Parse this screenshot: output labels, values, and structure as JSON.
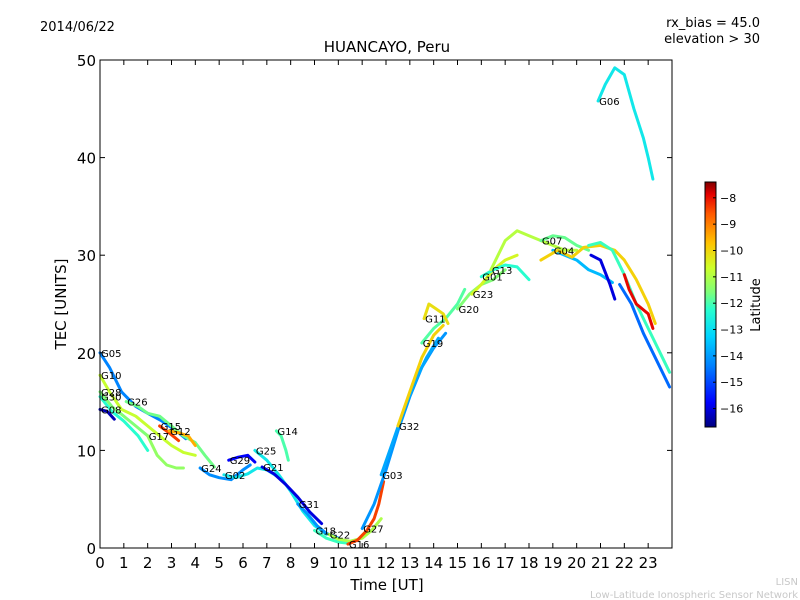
{
  "header": {
    "date": "2014/06/22",
    "info_line1": "rx_bias = 45.0",
    "info_line2": "elevation > 30"
  },
  "footer": {
    "line1": "LISN",
    "line2": "Low-Latitude Ionospheric Sensor Network"
  },
  "chart_data": {
    "type": "line",
    "title": "HUANCAYO, Peru",
    "xlabel": "Time [UT]",
    "ylabel": "TEC [UNITS]",
    "xlim": [
      0,
      24
    ],
    "ylim": [
      0,
      50
    ],
    "x_ticks": [
      0,
      1,
      2,
      3,
      4,
      5,
      6,
      7,
      8,
      9,
      10,
      11,
      12,
      13,
      14,
      15,
      16,
      17,
      18,
      19,
      20,
      21,
      22,
      23
    ],
    "y_ticks": [
      0,
      10,
      20,
      30,
      40,
      50
    ],
    "grid": false,
    "colorbar": {
      "label": "Latitude",
      "range": [
        -16.7,
        -7.4
      ],
      "ticks": [
        -8,
        -9,
        -10,
        -11,
        -12,
        -13,
        -14,
        -15,
        -16
      ],
      "colors": [
        "#00007f",
        "#0000ff",
        "#0080ff",
        "#00d4ff",
        "#29ffce",
        "#7dff7a",
        "#ceff29",
        "#ffc400",
        "#ff5900",
        "#e40000",
        "#7f0000"
      ]
    },
    "series": [
      {
        "name": "G05",
        "lat": -14.8,
        "points": [
          [
            0,
            20
          ],
          [
            0.4,
            18.5
          ],
          [
            0.9,
            16
          ],
          [
            1.5,
            14.5
          ],
          [
            2.0,
            13.8
          ],
          [
            2.6,
            13.0
          ],
          [
            3.2,
            12.0
          ],
          [
            3.6,
            11.2
          ]
        ]
      },
      {
        "name": "G10",
        "lat": -11.2,
        "points": [
          [
            0,
            17.7
          ],
          [
            0.4,
            16
          ],
          [
            0.9,
            14.2
          ],
          [
            1.5,
            13.5
          ],
          [
            2.0,
            12.5
          ],
          [
            2.5,
            11.5
          ],
          [
            3.0,
            10.5
          ],
          [
            3.5,
            9.8
          ],
          [
            4.0,
            9.5
          ]
        ]
      },
      {
        "name": "G28",
        "lat": -12.0,
        "points": [
          [
            0,
            16
          ],
          [
            0.5,
            14.5
          ],
          [
            1.0,
            13.5
          ],
          [
            1.5,
            12.5
          ],
          [
            2.0,
            11.5
          ]
        ]
      },
      {
        "name": "G30",
        "lat": -13.0,
        "points": [
          [
            0,
            15.5
          ],
          [
            0.5,
            14
          ],
          [
            1.0,
            13
          ],
          [
            1.6,
            11.5
          ],
          [
            2.0,
            10
          ]
        ]
      },
      {
        "name": "G08",
        "lat": -16.3,
        "points": [
          [
            0,
            14.2
          ],
          [
            0.3,
            14
          ],
          [
            0.6,
            13.2
          ]
        ]
      },
      {
        "name": "G26",
        "lat": -12.2,
        "points": [
          [
            1.1,
            15
          ],
          [
            1.6,
            14.5
          ],
          [
            2.0,
            13.8
          ],
          [
            2.5,
            13.5
          ],
          [
            3.0,
            12.5
          ],
          [
            3.5,
            11.5
          ],
          [
            4.0,
            10.8
          ],
          [
            4.4,
            9.5
          ],
          [
            4.8,
            8.3
          ]
        ]
      },
      {
        "name": "G17",
        "lat": -11.8,
        "points": [
          [
            2.0,
            11.5
          ],
          [
            2.4,
            9.5
          ],
          [
            2.8,
            8.5
          ],
          [
            3.2,
            8.2
          ],
          [
            3.5,
            8.2
          ]
        ]
      },
      {
        "name": "G15",
        "lat": -9.0,
        "points": [
          [
            2.5,
            12.5
          ],
          [
            2.9,
            11.8
          ],
          [
            3.3,
            11.0
          ]
        ]
      },
      {
        "name": "G12",
        "lat": -10.0,
        "points": [
          [
            2.9,
            12.0
          ],
          [
            3.3,
            11.8
          ],
          [
            3.7,
            11.5
          ],
          [
            4.0,
            10.5
          ]
        ]
      },
      {
        "name": "G24",
        "lat": -14.7,
        "points": [
          [
            4.2,
            8.2
          ],
          [
            4.6,
            7.5
          ],
          [
            5.0,
            7.2
          ],
          [
            5.5,
            7.0
          ],
          [
            6.0,
            8.0
          ],
          [
            6.3,
            8.5
          ]
        ]
      },
      {
        "name": "G29",
        "lat": -15.8,
        "points": [
          [
            5.4,
            9.0
          ],
          [
            5.8,
            9.3
          ],
          [
            6.2,
            9.5
          ],
          [
            6.5,
            8.8
          ]
        ]
      },
      {
        "name": "G02",
        "lat": -13.5,
        "points": [
          [
            5.2,
            7.5
          ],
          [
            5.7,
            7.2
          ],
          [
            6.2,
            7.6
          ],
          [
            6.6,
            8.2
          ],
          [
            7.0,
            8.0
          ],
          [
            7.4,
            7.4
          ]
        ]
      },
      {
        "name": "G14",
        "lat": -12.6,
        "points": [
          [
            7.4,
            12.0
          ],
          [
            7.6,
            11.5
          ],
          [
            7.8,
            10.0
          ],
          [
            7.9,
            9.0
          ]
        ]
      },
      {
        "name": "G25",
        "lat": -13.5,
        "points": [
          [
            6.5,
            10.0
          ],
          [
            7.0,
            9.0
          ],
          [
            7.5,
            7.5
          ],
          [
            8.0,
            5.8
          ],
          [
            8.5,
            3.8
          ],
          [
            9.0,
            2.3
          ],
          [
            9.5,
            1.4
          ]
        ]
      },
      {
        "name": "G21",
        "lat": -16.0,
        "points": [
          [
            6.8,
            8.3
          ],
          [
            7.3,
            7.6
          ],
          [
            7.8,
            6.5
          ],
          [
            8.3,
            5.2
          ],
          [
            8.8,
            3.7
          ],
          [
            9.3,
            2.5
          ]
        ]
      },
      {
        "name": "G31",
        "lat": -14.6,
        "points": [
          [
            8.3,
            4.5
          ],
          [
            8.7,
            3.5
          ],
          [
            9.1,
            2.3
          ],
          [
            9.5,
            1.5
          ],
          [
            10.0,
            1.0
          ]
        ]
      },
      {
        "name": "G18",
        "lat": -12.8,
        "points": [
          [
            9.0,
            1.8
          ],
          [
            9.5,
            1.0
          ],
          [
            10.0,
            0.6
          ],
          [
            10.4,
            0.5
          ]
        ]
      },
      {
        "name": "G22",
        "lat": -11.5,
        "points": [
          [
            9.6,
            1.4
          ],
          [
            10.0,
            0.9
          ],
          [
            10.5,
            0.7
          ],
          [
            11.0,
            1.0
          ],
          [
            11.4,
            1.8
          ],
          [
            11.8,
            3.0
          ]
        ]
      },
      {
        "name": "G16",
        "lat": -9.0,
        "points": [
          [
            10.4,
            0.4
          ],
          [
            10.8,
            0.8
          ],
          [
            11.2,
            1.8
          ],
          [
            11.5,
            3.0
          ],
          [
            11.7,
            4.5
          ],
          [
            11.9,
            6.8
          ]
        ]
      },
      {
        "name": "G27",
        "lat": -14.6,
        "points": [
          [
            11.0,
            2.0
          ],
          [
            11.5,
            4.5
          ],
          [
            12.0,
            8.0
          ],
          [
            12.5,
            12.0
          ],
          [
            13.0,
            15.5
          ],
          [
            13.5,
            18.5
          ],
          [
            14.0,
            20.5
          ],
          [
            14.5,
            22.0
          ]
        ]
      },
      {
        "name": "G03",
        "lat": -14.4,
        "points": [
          [
            11.8,
            7.5
          ],
          [
            12.3,
            11.0
          ],
          [
            12.8,
            14.5
          ],
          [
            13.3,
            17.5
          ],
          [
            13.7,
            19.5
          ],
          [
            14.2,
            21.5
          ]
        ]
      },
      {
        "name": "G32",
        "lat": -10.4,
        "points": [
          [
            12.5,
            12.5
          ],
          [
            13.0,
            16.0
          ],
          [
            13.5,
            19.5
          ],
          [
            14.0,
            21.8
          ],
          [
            14.4,
            22.8
          ]
        ]
      },
      {
        "name": "G19",
        "lat": -12.5,
        "points": [
          [
            13.5,
            21.0
          ],
          [
            14.0,
            22.5
          ],
          [
            14.5,
            23.5
          ],
          [
            15.0,
            25.0
          ],
          [
            15.3,
            26.5
          ]
        ]
      },
      {
        "name": "G11",
        "lat": -10.6,
        "points": [
          [
            13.6,
            23.5
          ],
          [
            13.8,
            25.0
          ],
          [
            14.1,
            24.5
          ],
          [
            14.4,
            24.0
          ],
          [
            14.6,
            23.0
          ]
        ]
      },
      {
        "name": "G20",
        "lat": -12.0,
        "points": [
          [
            15.0,
            24.5
          ],
          [
            15.5,
            26.0
          ],
          [
            16.0,
            27.0
          ],
          [
            16.5,
            27.5
          ],
          [
            17.0,
            28.5
          ]
        ]
      },
      {
        "name": "G23",
        "lat": -11.0,
        "points": [
          [
            15.6,
            26.0
          ],
          [
            16.0,
            27.0
          ],
          [
            16.5,
            28.5
          ],
          [
            17.0,
            29.5
          ],
          [
            17.5,
            30.0
          ]
        ]
      },
      {
        "name": "G01",
        "lat": -13.0,
        "points": [
          [
            16.0,
            27.8
          ],
          [
            16.5,
            28.5
          ],
          [
            17.0,
            29.0
          ],
          [
            17.5,
            28.8
          ],
          [
            18.0,
            27.5
          ]
        ]
      },
      {
        "name": "G13",
        "lat": -11.4,
        "points": [
          [
            16.4,
            28.5
          ],
          [
            17.0,
            31.5
          ],
          [
            17.5,
            32.5
          ],
          [
            18.0,
            32.0
          ],
          [
            18.5,
            31.5
          ],
          [
            19.0,
            31.0
          ],
          [
            19.5,
            30.5
          ],
          [
            20.0,
            30.5
          ]
        ]
      },
      {
        "name": "G07",
        "lat": -12.3,
        "points": [
          [
            18.5,
            31.5
          ],
          [
            19.0,
            32.0
          ],
          [
            19.5,
            31.8
          ],
          [
            20.0,
            31.0
          ],
          [
            20.5,
            30.5
          ]
        ]
      },
      {
        "name": "G04",
        "lat": -14.2,
        "points": [
          [
            19.0,
            30.5
          ],
          [
            19.5,
            30.0
          ],
          [
            20.0,
            29.5
          ],
          [
            20.5,
            28.5
          ],
          [
            21.0,
            28.0
          ],
          [
            21.5,
            27.2
          ]
        ]
      },
      {
        "name": "G06",
        "lat": -13.5,
        "points": [
          [
            20.9,
            45.8
          ],
          [
            21.2,
            47.5
          ],
          [
            21.6,
            49.2
          ],
          [
            22.0,
            48.5
          ],
          [
            22.4,
            45.0
          ],
          [
            22.8,
            42.0
          ],
          [
            23.0,
            40.0
          ],
          [
            23.2,
            37.8
          ]
        ]
      },
      {
        "name": "",
        "lat": -10.4,
        "points": [
          [
            18.5,
            29.5
          ],
          [
            19.2,
            30.5
          ],
          [
            19.8,
            29.8
          ],
          [
            20.3,
            30.8
          ],
          [
            21.0,
            31.0
          ],
          [
            21.6,
            30.5
          ],
          [
            22.0,
            29.5
          ],
          [
            22.5,
            27.5
          ],
          [
            23.0,
            25.0
          ],
          [
            23.3,
            23.0
          ]
        ]
      },
      {
        "name": "",
        "lat": -12.8,
        "points": [
          [
            20.5,
            31.0
          ],
          [
            21.0,
            31.3
          ],
          [
            21.5,
            30.5
          ],
          [
            22.0,
            28.0
          ],
          [
            22.5,
            25.0
          ],
          [
            23.0,
            22.5
          ],
          [
            23.5,
            20.0
          ],
          [
            23.9,
            18.0
          ]
        ]
      },
      {
        "name": "",
        "lat": -15.0,
        "points": [
          [
            21.8,
            27.0
          ],
          [
            22.3,
            25.0
          ],
          [
            22.8,
            22.0
          ],
          [
            23.3,
            19.5
          ],
          [
            23.9,
            16.5
          ]
        ]
      },
      {
        "name": "",
        "lat": -8.4,
        "points": [
          [
            22.0,
            28.0
          ],
          [
            22.2,
            26.5
          ],
          [
            22.5,
            25.0
          ],
          [
            23.0,
            24.0
          ],
          [
            23.2,
            22.5
          ]
        ]
      },
      {
        "name": "",
        "lat": -16.0,
        "points": [
          [
            20.6,
            30.0
          ],
          [
            21.0,
            29.5
          ],
          [
            21.4,
            27.0
          ],
          [
            21.6,
            25.5
          ]
        ]
      }
    ]
  }
}
